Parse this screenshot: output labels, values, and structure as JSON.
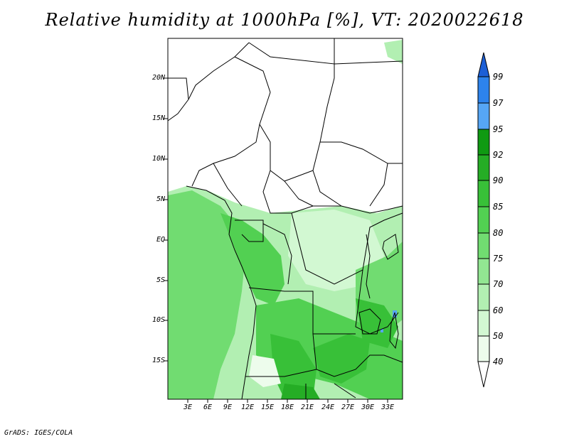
{
  "title": "Relative humidity at 1000hPa [%], VT: 2020022618",
  "credit": "GrADS: IGES/COLA",
  "lat_labels": [
    "20N",
    "15N",
    "10N",
    "5N",
    "EQ",
    "5S",
    "10S",
    "15S"
  ],
  "lon_labels": [
    "3E",
    "6E",
    "9E",
    "12E",
    "15E",
    "18E",
    "21E",
    "24E",
    "27E",
    "30E",
    "33E"
  ],
  "colorbar": {
    "labels": [
      "99",
      "97",
      "95",
      "92",
      "90",
      "85",
      "80",
      "75",
      "70",
      "60",
      "50",
      "40"
    ],
    "colors": [
      "#1c5fd6",
      "#2d83ec",
      "#56a6f5",
      "#0f9a12",
      "#25ad25",
      "#38c038",
      "#52d052",
      "#71dc71",
      "#92e692",
      "#b2efb2",
      "#d2f8d2",
      "#edfcec"
    ]
  }
}
